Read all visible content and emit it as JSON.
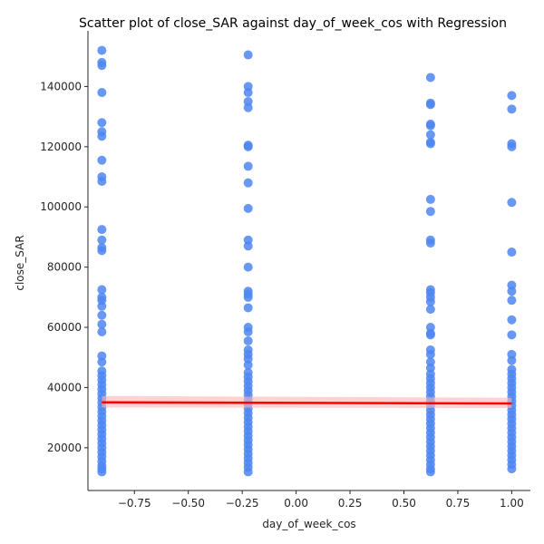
{
  "chart_data": {
    "type": "scatter",
    "title": "Scatter plot of close_SAR against day_of_week_cos with Regression",
    "xlabel": "day_of_week_cos",
    "ylabel": "close_SAR",
    "xlim": [
      -0.9655,
      1.0866
    ],
    "ylim": [
      5800,
      158500
    ],
    "x_ticks": [
      -0.75,
      -0.5,
      -0.25,
      0.0,
      0.25,
      0.5,
      0.75,
      1.0
    ],
    "x_tick_labels": [
      "−0.75",
      "−0.50",
      "−0.25",
      "0.00",
      "0.25",
      "0.50",
      "0.75",
      "1.00"
    ],
    "y_ticks": [
      20000,
      40000,
      60000,
      80000,
      100000,
      120000,
      140000
    ],
    "y_tick_labels": [
      "20000",
      "40000",
      "60000",
      "80000",
      "100000",
      "120000",
      "140000"
    ],
    "grid": false,
    "point_color": "#4f86f0",
    "regression_color": "#ff0000",
    "ci_color": "#ffb3b3",
    "series": [
      {
        "x": -0.901,
        "y": [
          152000,
          148000,
          147000,
          138000,
          128000,
          125000,
          123500,
          115500,
          110000,
          108500,
          92500,
          89000,
          86500,
          85500,
          72500,
          70000,
          69000,
          67000,
          64000,
          61000,
          58500,
          50500,
          48500,
          45500,
          44000,
          42500,
          41000,
          39500,
          38000,
          36500,
          35000,
          33500,
          32000,
          30500,
          29000,
          27500,
          26000,
          24500,
          23000,
          21500,
          20000,
          18500,
          17000,
          15500,
          14000,
          13000,
          12000
        ]
      },
      {
        "x": -0.2225,
        "y": [
          150500,
          140000,
          138000,
          135000,
          133000,
          120500,
          120000,
          113500,
          108000,
          99500,
          89000,
          87000,
          80000,
          72000,
          71000,
          70000,
          66500,
          60000,
          58500,
          55500,
          52500,
          51000,
          49500,
          47500,
          45000,
          43500,
          42000,
          40500,
          39000,
          37500,
          36000,
          34500,
          33000,
          31500,
          30000,
          28500,
          27000,
          25500,
          24000,
          22500,
          21000,
          19500,
          18000,
          16500,
          15000,
          13500,
          12000
        ]
      },
      {
        "x": 0.6235,
        "y": [
          143000,
          134500,
          134000,
          127500,
          127000,
          124000,
          121500,
          121000,
          102500,
          98500,
          89000,
          88000,
          72500,
          71500,
          70000,
          68500,
          66000,
          60000,
          58000,
          57500,
          52500,
          51000,
          48500,
          46500,
          44500,
          43000,
          41500,
          40000,
          38500,
          37000,
          35500,
          34000,
          32500,
          31000,
          29500,
          28000,
          26500,
          25000,
          23500,
          22000,
          20500,
          19000,
          17500,
          16000,
          14500,
          13000,
          12000
        ]
      },
      {
        "x": 1.0,
        "y": [
          137000,
          132500,
          121000,
          120000,
          101500,
          85000,
          74000,
          72000,
          69000,
          62500,
          57500,
          51000,
          49000,
          46000,
          44500,
          43000,
          41500,
          40000,
          38500,
          37000,
          35500,
          34000,
          32500,
          31000,
          29500,
          28000,
          26500,
          25000,
          23500,
          22000,
          20500,
          19000,
          17500,
          16000,
          14500,
          13000
        ]
      }
    ],
    "regression": {
      "x": [
        -0.901,
        1.0
      ],
      "y": [
        35100,
        34700
      ],
      "ci_lower": [
        33400,
        33200
      ],
      "ci_upper": [
        37200,
        36600
      ]
    }
  }
}
